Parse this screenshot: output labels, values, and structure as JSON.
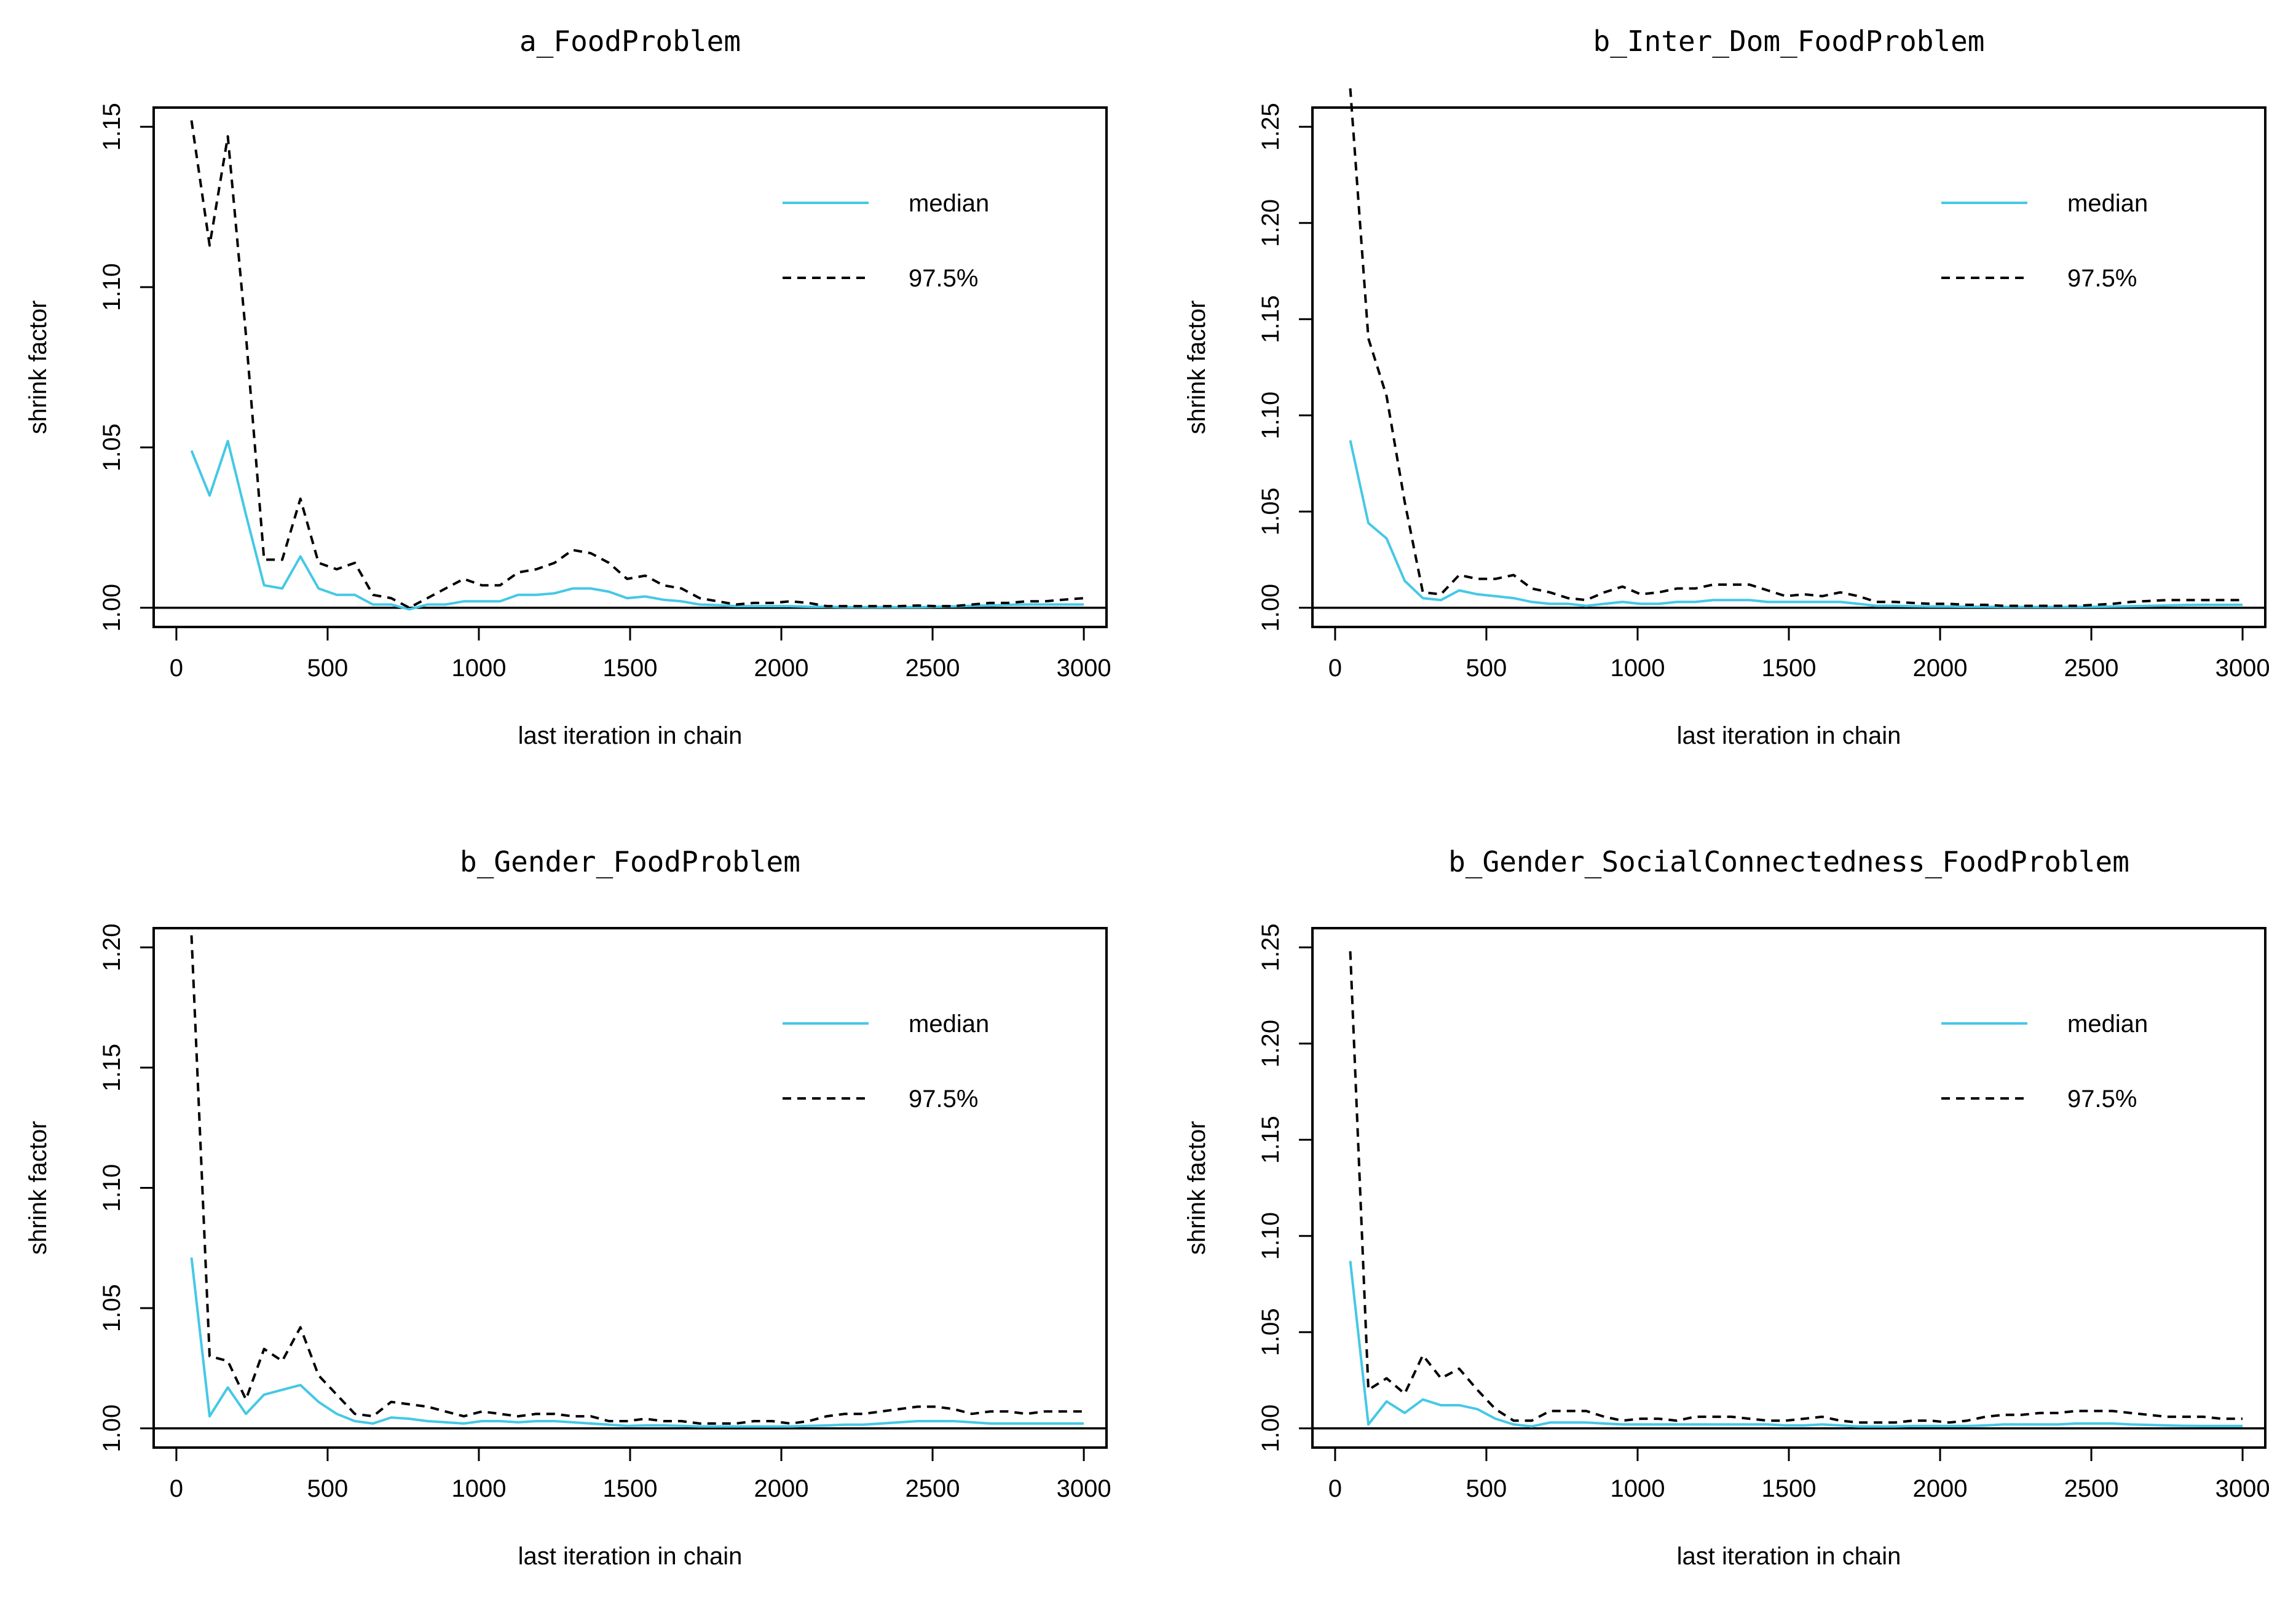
{
  "colors": {
    "median": "#45c8e6",
    "upper": "#000000",
    "axis": "#000000",
    "background": "#ffffff"
  },
  "chart_data": [
    {
      "type": "line",
      "title": "a_FoodProblem",
      "xlabel": "last iteration in chain",
      "ylabel": "shrink factor",
      "xlim": [
        0,
        3000
      ],
      "ylim": [
        1.0,
        1.15
      ],
      "xticks": [
        "0",
        "500",
        "1000",
        "1500",
        "2000",
        "2500",
        "3000"
      ],
      "yticks": [
        "1.00",
        "1.05",
        "1.10",
        "1.15"
      ],
      "reference_line": 1.0,
      "legend": {
        "position": "top-right",
        "entries": [
          "median",
          "97.5%"
        ]
      },
      "x": [
        50,
        110,
        170,
        230,
        290,
        350,
        410,
        470,
        530,
        590,
        650,
        710,
        770,
        830,
        890,
        950,
        1010,
        1070,
        1130,
        1190,
        1250,
        1310,
        1370,
        1430,
        1490,
        1550,
        1610,
        1670,
        1730,
        1790,
        1850,
        1910,
        1970,
        2030,
        2090,
        2150,
        2210,
        2270,
        2330,
        2390,
        2450,
        2510,
        2570,
        2630,
        2690,
        2750,
        2810,
        2870,
        2930,
        3000
      ],
      "series": [
        {
          "name": "median",
          "values": [
            1.049,
            1.035,
            1.052,
            1.029,
            1.007,
            1.006,
            1.016,
            1.006,
            1.004,
            1.004,
            1.001,
            1.001,
            0.9995,
            1.001,
            1.001,
            1.002,
            1.002,
            1.002,
            1.004,
            1.004,
            1.0045,
            1.006,
            1.006,
            1.005,
            1.003,
            1.0035,
            1.0025,
            1.002,
            1.001,
            1.0008,
            1.0005,
            1.0005,
            1.0005,
            1.0005,
            1.0003,
            1.0003,
            1.0002,
            1.0002,
            1.0002,
            1.0002,
            1.0002,
            1.0003,
            1.0004,
            1.0006,
            1.0007,
            1.0009,
            1.001,
            1.001,
            1.001,
            1.001
          ]
        },
        {
          "name": "97.5%",
          "values": [
            1.152,
            1.113,
            1.147,
            1.085,
            1.015,
            1.015,
            1.034,
            1.014,
            1.012,
            1.014,
            1.004,
            1.003,
            1.0,
            1.003,
            1.006,
            1.009,
            1.007,
            1.007,
            1.011,
            1.012,
            1.014,
            1.018,
            1.017,
            1.014,
            1.009,
            1.01,
            1.007,
            1.006,
            1.003,
            1.002,
            1.001,
            1.0015,
            1.0015,
            1.002,
            1.0015,
            1.0005,
            1.0005,
            1.0005,
            1.0005,
            1.0005,
            1.0007,
            1.0005,
            1.0005,
            1.001,
            1.0015,
            1.0015,
            1.002,
            1.002,
            1.0025,
            1.003
          ]
        }
      ]
    },
    {
      "type": "line",
      "title": "b_Inter_Dom_FoodProblem",
      "xlabel": "last iteration in chain",
      "ylabel": "shrink factor",
      "xlim": [
        0,
        3000
      ],
      "ylim": [
        1.0,
        1.25
      ],
      "xticks": [
        "0",
        "500",
        "1000",
        "1500",
        "2000",
        "2500",
        "3000"
      ],
      "yticks": [
        "1.00",
        "1.05",
        "1.10",
        "1.15",
        "1.20",
        "1.25"
      ],
      "reference_line": 1.0,
      "legend": {
        "position": "top-right",
        "entries": [
          "median",
          "97.5%"
        ]
      },
      "x": [
        50,
        110,
        170,
        230,
        290,
        350,
        410,
        470,
        530,
        590,
        650,
        710,
        770,
        830,
        890,
        950,
        1010,
        1070,
        1130,
        1190,
        1250,
        1310,
        1370,
        1430,
        1490,
        1550,
        1610,
        1670,
        1730,
        1790,
        1850,
        1910,
        1970,
        2030,
        2090,
        2150,
        2210,
        2270,
        2330,
        2390,
        2450,
        2510,
        2570,
        2630,
        2690,
        2750,
        2810,
        2870,
        2930,
        3000
      ],
      "series": [
        {
          "name": "median",
          "values": [
            1.087,
            1.044,
            1.036,
            1.014,
            1.005,
            1.004,
            1.009,
            1.007,
            1.006,
            1.005,
            1.003,
            1.002,
            1.002,
            1.001,
            1.002,
            1.003,
            1.002,
            1.002,
            1.003,
            1.003,
            1.004,
            1.004,
            1.004,
            1.003,
            1.003,
            1.003,
            1.003,
            1.003,
            1.002,
            1.001,
            1.001,
            1.0008,
            1.0006,
            1.0006,
            1.0005,
            1.0005,
            1.0004,
            1.0004,
            1.0004,
            1.0004,
            1.0004,
            1.0005,
            1.0006,
            1.0008,
            1.001,
            1.0012,
            1.0014,
            1.0015,
            1.0015,
            1.0015
          ]
        },
        {
          "name": "97.5%",
          "values": [
            1.27,
            1.14,
            1.11,
            1.055,
            1.008,
            1.007,
            1.017,
            1.015,
            1.015,
            1.017,
            1.01,
            1.008,
            1.005,
            1.004,
            1.008,
            1.011,
            1.007,
            1.008,
            1.01,
            1.01,
            1.012,
            1.012,
            1.012,
            1.009,
            1.006,
            1.007,
            1.006,
            1.008,
            1.006,
            1.003,
            1.003,
            1.0025,
            1.002,
            1.002,
            1.0015,
            1.0015,
            1.001,
            1.001,
            1.001,
            1.001,
            1.001,
            1.0015,
            1.002,
            1.003,
            1.0035,
            1.004,
            1.004,
            1.004,
            1.004,
            1.004
          ]
        }
      ]
    },
    {
      "type": "line",
      "title": "b_Gender_FoodProblem",
      "xlabel": "last iteration in chain",
      "ylabel": "shrink factor",
      "xlim": [
        0,
        3000
      ],
      "ylim": [
        1.0,
        1.2
      ],
      "xticks": [
        "0",
        "500",
        "1000",
        "1500",
        "2000",
        "2500",
        "3000"
      ],
      "yticks": [
        "1.00",
        "1.05",
        "1.10",
        "1.15",
        "1.20"
      ],
      "reference_line": 1.0,
      "legend": {
        "position": "top-right",
        "entries": [
          "median",
          "97.5%"
        ]
      },
      "x": [
        50,
        110,
        170,
        230,
        290,
        350,
        410,
        470,
        530,
        590,
        650,
        710,
        770,
        830,
        890,
        950,
        1010,
        1070,
        1130,
        1190,
        1250,
        1310,
        1370,
        1430,
        1490,
        1550,
        1610,
        1670,
        1730,
        1790,
        1850,
        1910,
        1970,
        2030,
        2090,
        2150,
        2210,
        2270,
        2330,
        2390,
        2450,
        2510,
        2570,
        2630,
        2690,
        2750,
        2810,
        2870,
        2930,
        3000
      ],
      "series": [
        {
          "name": "median",
          "values": [
            1.071,
            1.005,
            1.017,
            1.006,
            1.014,
            1.016,
            1.018,
            1.011,
            1.006,
            1.003,
            1.002,
            1.0045,
            1.004,
            1.003,
            1.0025,
            1.002,
            1.003,
            1.003,
            1.0025,
            1.003,
            1.003,
            1.0025,
            1.002,
            1.0015,
            1.001,
            1.0012,
            1.0012,
            1.001,
            1.0008,
            1.0008,
            1.0008,
            1.0008,
            1.0008,
            1.0008,
            1.001,
            1.0012,
            1.0015,
            1.0015,
            1.002,
            1.0025,
            1.003,
            1.003,
            1.003,
            1.0025,
            1.002,
            1.002,
            1.002,
            1.002,
            1.002,
            1.002
          ]
        },
        {
          "name": "97.5%",
          "values": [
            1.205,
            1.03,
            1.028,
            1.012,
            1.033,
            1.028,
            1.042,
            1.022,
            1.014,
            1.006,
            1.005,
            1.011,
            1.01,
            1.009,
            1.007,
            1.005,
            1.007,
            1.006,
            1.005,
            1.006,
            1.006,
            1.005,
            1.005,
            1.003,
            1.003,
            1.004,
            1.003,
            1.003,
            1.002,
            1.002,
            1.002,
            1.003,
            1.003,
            1.002,
            1.003,
            1.005,
            1.006,
            1.006,
            1.007,
            1.008,
            1.009,
            1.009,
            1.008,
            1.006,
            1.007,
            1.007,
            1.006,
            1.007,
            1.007,
            1.007
          ]
        }
      ]
    },
    {
      "type": "line",
      "title": "b_Gender_SocialConnectedness_FoodProblem",
      "xlabel": "last iteration in chain",
      "ylabel": "shrink factor",
      "xlim": [
        0,
        3000
      ],
      "ylim": [
        1.0,
        1.25
      ],
      "xticks": [
        "0",
        "500",
        "1000",
        "1500",
        "2000",
        "2500",
        "3000"
      ],
      "yticks": [
        "1.00",
        "1.05",
        "1.10",
        "1.15",
        "1.20",
        "1.25"
      ],
      "reference_line": 1.0,
      "legend": {
        "position": "top-right",
        "entries": [
          "median",
          "97.5%"
        ]
      },
      "x": [
        50,
        110,
        170,
        230,
        290,
        350,
        410,
        470,
        530,
        590,
        650,
        710,
        770,
        830,
        890,
        950,
        1010,
        1070,
        1130,
        1190,
        1250,
        1310,
        1370,
        1430,
        1490,
        1550,
        1610,
        1670,
        1730,
        1790,
        1850,
        1910,
        1970,
        2030,
        2090,
        2150,
        2210,
        2270,
        2330,
        2390,
        2450,
        2510,
        2570,
        2630,
        2690,
        2750,
        2810,
        2870,
        2930,
        3000
      ],
      "series": [
        {
          "name": "median",
          "values": [
            1.087,
            1.002,
            1.014,
            1.008,
            1.015,
            1.012,
            1.012,
            1.01,
            1.005,
            1.002,
            1.001,
            1.003,
            1.003,
            1.003,
            1.0025,
            1.002,
            1.002,
            1.002,
            1.002,
            1.002,
            1.002,
            1.002,
            1.002,
            1.002,
            1.0015,
            1.0015,
            1.002,
            1.0015,
            1.001,
            1.001,
            1.001,
            1.0012,
            1.0012,
            1.0012,
            1.0012,
            1.0015,
            1.002,
            1.002,
            1.002,
            1.002,
            1.0025,
            1.0025,
            1.0025,
            1.002,
            1.0018,
            1.0015,
            1.0013,
            1.0012,
            1.0012,
            1.0012
          ]
        },
        {
          "name": "97.5%",
          "values": [
            1.248,
            1.02,
            1.026,
            1.018,
            1.038,
            1.026,
            1.031,
            1.02,
            1.01,
            1.004,
            1.004,
            1.009,
            1.009,
            1.009,
            1.006,
            1.004,
            1.005,
            1.005,
            1.004,
            1.006,
            1.006,
            1.006,
            1.005,
            1.004,
            1.004,
            1.005,
            1.006,
            1.004,
            1.003,
            1.003,
            1.003,
            1.004,
            1.004,
            1.003,
            1.004,
            1.006,
            1.007,
            1.007,
            1.008,
            1.008,
            1.009,
            1.009,
            1.009,
            1.008,
            1.007,
            1.006,
            1.006,
            1.006,
            1.005,
            1.005
          ]
        }
      ]
    }
  ]
}
